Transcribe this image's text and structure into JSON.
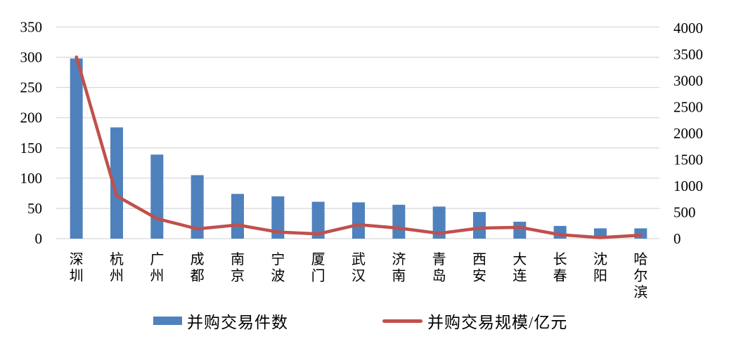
{
  "chart_data": {
    "type": "bar",
    "subtype": "combo-bar-line-dual-axis",
    "title": "",
    "categories": [
      "深圳",
      "杭州",
      "广州",
      "成都",
      "南京",
      "宁波",
      "厦门",
      "武汉",
      "济南",
      "青岛",
      "西安",
      "大连",
      "长春",
      "沈阳",
      "哈尔滨"
    ],
    "series": [
      {
        "name": "并购交易件数",
        "type": "bar",
        "axis": "left",
        "color": "#4F81BD",
        "values": [
          298,
          184,
          139,
          105,
          74,
          70,
          61,
          60,
          56,
          53,
          44,
          28,
          21,
          17,
          17
        ]
      },
      {
        "name": "并购交易规模/亿元",
        "type": "line",
        "axis": "right",
        "color": "#C0504D",
        "values": [
          3450,
          810,
          380,
          185,
          260,
          125,
          90,
          265,
          200,
          100,
          200,
          215,
          75,
          20,
          65
        ]
      }
    ],
    "left_axis": {
      "min": 0,
      "max": 350,
      "step": 50,
      "ticks": [
        0,
        50,
        100,
        150,
        200,
        250,
        300,
        350
      ]
    },
    "right_axis": {
      "min": 0,
      "max": 4000,
      "step": 500,
      "ticks": [
        0,
        500,
        1000,
        1500,
        2000,
        2500,
        3000,
        3500,
        4000
      ]
    },
    "grid": true,
    "gridline_color": "#D9D9D9",
    "background_color": "#FFFFFF",
    "legend_position": "bottom"
  }
}
